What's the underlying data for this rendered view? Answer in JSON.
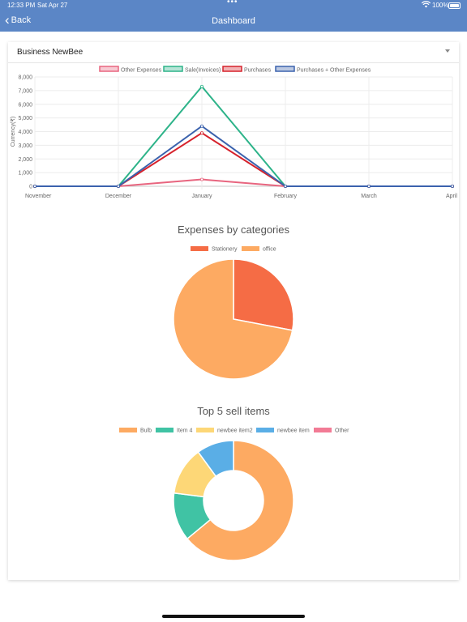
{
  "status_bar": {
    "time": "12:33 PM",
    "date": "Sat Apr 27",
    "dots": "•••",
    "battery": "100%"
  },
  "nav": {
    "back_label": "Back",
    "title": "Dashboard"
  },
  "business_select": {
    "value": "Business NewBee"
  },
  "colors": {
    "accent": "#5b86c6",
    "other_expenses": "#e8657f",
    "sale": "#2db389",
    "purchases": "#d6222c",
    "purchases_other": "#3b62ad",
    "stationery": "#f56c45",
    "office": "#fdaa62",
    "bulb": "#fdaa62",
    "item4": "#40c3a4",
    "newbee_item2": "#fdd777",
    "newbee_item": "#5aaee6",
    "other": "#f27b95"
  },
  "chart_data": [
    {
      "type": "line",
      "x": [
        "November",
        "December",
        "January",
        "February",
        "March",
        "April"
      ],
      "ylabel": "Currency(₹)",
      "ylim": [
        0,
        8000
      ],
      "yticks": [
        "0",
        "1,000",
        "2,000",
        "3,000",
        "4,000",
        "5,000",
        "6,000",
        "7,000",
        "8,000"
      ],
      "grid": true,
      "legend_position": "top",
      "series": [
        {
          "name": "Other Expenses",
          "values": [
            0,
            0,
            500,
            0,
            0,
            0
          ]
        },
        {
          "name": "Sale(Invoices)",
          "values": [
            0,
            0,
            7300,
            0,
            0,
            0
          ]
        },
        {
          "name": "Purchases",
          "values": [
            0,
            0,
            3900,
            0,
            0,
            0
          ]
        },
        {
          "name": "Purchases + Other Expenses",
          "values": [
            0,
            0,
            4400,
            0,
            0,
            0
          ]
        }
      ]
    },
    {
      "type": "pie",
      "title": "Expenses by categories",
      "legend_position": "top",
      "categories": [
        "Stationery",
        "office"
      ],
      "values": [
        28,
        72
      ]
    },
    {
      "type": "pie",
      "title": "Top 5 sell items",
      "legend_position": "top",
      "categories": [
        "Bulb",
        "Item 4",
        "newbee item2",
        "newbee item",
        "Other"
      ],
      "values": [
        64,
        13,
        13,
        10,
        0
      ]
    }
  ]
}
